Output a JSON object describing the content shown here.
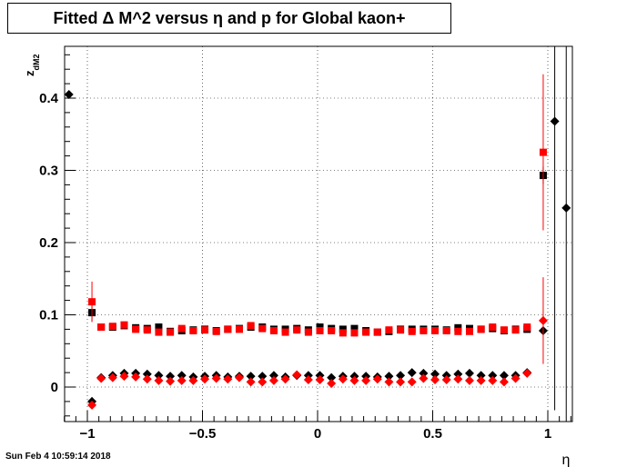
{
  "chart_data": {
    "type": "scatter",
    "title": "Fitted Δ M^2 versus η and p for Global kaon+",
    "xlabel": "η",
    "ylabel": "z",
    "ylabel_sub": "dM2",
    "xlim": [
      -1.1,
      1.12
    ],
    "ylim": [
      -0.048,
      0.478
    ],
    "grid": true,
    "x_ticks": [
      -1,
      -0.5,
      0,
      0.5,
      1
    ],
    "x_tick_labels": [
      "−1",
      "−0.5",
      "0",
      "0.5",
      "1"
    ],
    "y_ticks": [
      0,
      0.1,
      0.2,
      0.3,
      0.4
    ],
    "y_tick_labels": [
      "0",
      "0.1",
      "0.2",
      "0.3",
      "0.4"
    ],
    "series": [
      {
        "marker": "square",
        "color": "#000000",
        "points": [
          {
            "x": -0.98,
            "y": 0.103,
            "err": 0.012
          },
          {
            "x": -0.94,
            "y": 0.083,
            "err": 0.003
          },
          {
            "x": -0.89,
            "y": 0.083,
            "err": 0.003
          },
          {
            "x": -0.84,
            "y": 0.085,
            "err": 0.003
          },
          {
            "x": -0.79,
            "y": 0.082,
            "err": 0.003
          },
          {
            "x": -0.74,
            "y": 0.081,
            "err": 0.003
          },
          {
            "x": -0.69,
            "y": 0.083,
            "err": 0.003
          },
          {
            "x": -0.64,
            "y": 0.077,
            "err": 0.003
          },
          {
            "x": -0.59,
            "y": 0.078,
            "err": 0.003
          },
          {
            "x": -0.54,
            "y": 0.079,
            "err": 0.003
          },
          {
            "x": -0.49,
            "y": 0.08,
            "err": 0.003
          },
          {
            "x": -0.44,
            "y": 0.078,
            "err": 0.003
          },
          {
            "x": -0.39,
            "y": 0.08,
            "err": 0.003
          },
          {
            "x": -0.34,
            "y": 0.081,
            "err": 0.003
          },
          {
            "x": -0.29,
            "y": 0.083,
            "err": 0.003
          },
          {
            "x": -0.24,
            "y": 0.083,
            "err": 0.003
          },
          {
            "x": -0.19,
            "y": 0.08,
            "err": 0.003
          },
          {
            "x": -0.14,
            "y": 0.08,
            "err": 0.003
          },
          {
            "x": -0.09,
            "y": 0.081,
            "err": 0.003
          },
          {
            "x": -0.04,
            "y": 0.079,
            "err": 0.003
          },
          {
            "x": 0.01,
            "y": 0.083,
            "err": 0.003
          },
          {
            "x": 0.06,
            "y": 0.081,
            "err": 0.003
          },
          {
            "x": 0.11,
            "y": 0.08,
            "err": 0.003
          },
          {
            "x": 0.16,
            "y": 0.081,
            "err": 0.003
          },
          {
            "x": 0.21,
            "y": 0.078,
            "err": 0.003
          },
          {
            "x": 0.26,
            "y": 0.076,
            "err": 0.003
          },
          {
            "x": 0.31,
            "y": 0.077,
            "err": 0.003
          },
          {
            "x": 0.36,
            "y": 0.08,
            "err": 0.003
          },
          {
            "x": 0.41,
            "y": 0.08,
            "err": 0.003
          },
          {
            "x": 0.46,
            "y": 0.08,
            "err": 0.003
          },
          {
            "x": 0.51,
            "y": 0.08,
            "err": 0.003
          },
          {
            "x": 0.56,
            "y": 0.079,
            "err": 0.003
          },
          {
            "x": 0.61,
            "y": 0.082,
            "err": 0.003
          },
          {
            "x": 0.66,
            "y": 0.081,
            "err": 0.003
          },
          {
            "x": 0.71,
            "y": 0.08,
            "err": 0.003
          },
          {
            "x": 0.76,
            "y": 0.081,
            "err": 0.003
          },
          {
            "x": 0.81,
            "y": 0.078,
            "err": 0.003
          },
          {
            "x": 0.86,
            "y": 0.08,
            "err": 0.003
          },
          {
            "x": 0.91,
            "y": 0.08,
            "err": 0.003
          },
          {
            "x": 0.98,
            "y": 0.293,
            "err": 0.012
          }
        ]
      },
      {
        "marker": "square",
        "color": "#ff0000",
        "points": [
          {
            "x": -0.98,
            "y": 0.118,
            "err": 0.028
          },
          {
            "x": -0.94,
            "y": 0.083,
            "err": 0.004
          },
          {
            "x": -0.89,
            "y": 0.084,
            "err": 0.004
          },
          {
            "x": -0.84,
            "y": 0.086,
            "err": 0.004
          },
          {
            "x": -0.79,
            "y": 0.08,
            "err": 0.004
          },
          {
            "x": -0.74,
            "y": 0.079,
            "err": 0.004
          },
          {
            "x": -0.69,
            "y": 0.076,
            "err": 0.004
          },
          {
            "x": -0.64,
            "y": 0.076,
            "err": 0.004
          },
          {
            "x": -0.59,
            "y": 0.081,
            "err": 0.004
          },
          {
            "x": -0.54,
            "y": 0.078,
            "err": 0.004
          },
          {
            "x": -0.49,
            "y": 0.079,
            "err": 0.004
          },
          {
            "x": -0.44,
            "y": 0.077,
            "err": 0.004
          },
          {
            "x": -0.39,
            "y": 0.08,
            "err": 0.004
          },
          {
            "x": -0.34,
            "y": 0.08,
            "err": 0.004
          },
          {
            "x": -0.29,
            "y": 0.085,
            "err": 0.004
          },
          {
            "x": -0.24,
            "y": 0.081,
            "err": 0.004
          },
          {
            "x": -0.19,
            "y": 0.078,
            "err": 0.004
          },
          {
            "x": -0.14,
            "y": 0.076,
            "err": 0.004
          },
          {
            "x": -0.09,
            "y": 0.079,
            "err": 0.004
          },
          {
            "x": -0.04,
            "y": 0.076,
            "err": 0.004
          },
          {
            "x": 0.01,
            "y": 0.078,
            "err": 0.004
          },
          {
            "x": 0.06,
            "y": 0.078,
            "err": 0.004
          },
          {
            "x": 0.11,
            "y": 0.075,
            "err": 0.004
          },
          {
            "x": 0.16,
            "y": 0.075,
            "err": 0.004
          },
          {
            "x": 0.21,
            "y": 0.076,
            "err": 0.004
          },
          {
            "x": 0.26,
            "y": 0.076,
            "err": 0.004
          },
          {
            "x": 0.31,
            "y": 0.079,
            "err": 0.004
          },
          {
            "x": 0.36,
            "y": 0.079,
            "err": 0.004
          },
          {
            "x": 0.41,
            "y": 0.077,
            "err": 0.004
          },
          {
            "x": 0.46,
            "y": 0.078,
            "err": 0.004
          },
          {
            "x": 0.51,
            "y": 0.078,
            "err": 0.004
          },
          {
            "x": 0.56,
            "y": 0.078,
            "err": 0.004
          },
          {
            "x": 0.61,
            "y": 0.077,
            "err": 0.004
          },
          {
            "x": 0.66,
            "y": 0.077,
            "err": 0.004
          },
          {
            "x": 0.71,
            "y": 0.08,
            "err": 0.004
          },
          {
            "x": 0.76,
            "y": 0.083,
            "err": 0.004
          },
          {
            "x": 0.81,
            "y": 0.079,
            "err": 0.004
          },
          {
            "x": 0.86,
            "y": 0.079,
            "err": 0.004
          },
          {
            "x": 0.91,
            "y": 0.083,
            "err": 0.004
          },
          {
            "x": 0.98,
            "y": 0.325,
            "err": 0.108
          }
        ]
      },
      {
        "marker": "diamond",
        "color": "#000000",
        "points": [
          {
            "x": -1.08,
            "y": 0.405,
            "err": 0
          },
          {
            "x": -0.98,
            "y": -0.02,
            "err": 0.006
          },
          {
            "x": -0.94,
            "y": 0.013,
            "err": 0.002
          },
          {
            "x": -0.89,
            "y": 0.016,
            "err": 0.002
          },
          {
            "x": -0.84,
            "y": 0.019,
            "err": 0.002
          },
          {
            "x": -0.79,
            "y": 0.019,
            "err": 0.002
          },
          {
            "x": -0.74,
            "y": 0.018,
            "err": 0.002
          },
          {
            "x": -0.69,
            "y": 0.016,
            "err": 0.002
          },
          {
            "x": -0.64,
            "y": 0.015,
            "err": 0.002
          },
          {
            "x": -0.59,
            "y": 0.016,
            "err": 0.002
          },
          {
            "x": -0.54,
            "y": 0.014,
            "err": 0.002
          },
          {
            "x": -0.49,
            "y": 0.015,
            "err": 0.002
          },
          {
            "x": -0.44,
            "y": 0.016,
            "err": 0.002
          },
          {
            "x": -0.39,
            "y": 0.014,
            "err": 0.002
          },
          {
            "x": -0.34,
            "y": 0.015,
            "err": 0.002
          },
          {
            "x": -0.29,
            "y": 0.015,
            "err": 0.002
          },
          {
            "x": -0.24,
            "y": 0.015,
            "err": 0.002
          },
          {
            "x": -0.19,
            "y": 0.016,
            "err": 0.002
          },
          {
            "x": -0.14,
            "y": 0.014,
            "err": 0.002
          },
          {
            "x": -0.09,
            "y": 0.016,
            "err": 0.002
          },
          {
            "x": -0.04,
            "y": 0.016,
            "err": 0.002
          },
          {
            "x": 0.01,
            "y": 0.016,
            "err": 0.002
          },
          {
            "x": 0.06,
            "y": 0.013,
            "err": 0.002
          },
          {
            "x": 0.11,
            "y": 0.015,
            "err": 0.002
          },
          {
            "x": 0.16,
            "y": 0.015,
            "err": 0.002
          },
          {
            "x": 0.21,
            "y": 0.015,
            "err": 0.002
          },
          {
            "x": 0.26,
            "y": 0.014,
            "err": 0.002
          },
          {
            "x": 0.31,
            "y": 0.015,
            "err": 0.002
          },
          {
            "x": 0.36,
            "y": 0.016,
            "err": 0.002
          },
          {
            "x": 0.41,
            "y": 0.02,
            "err": 0.002
          },
          {
            "x": 0.46,
            "y": 0.019,
            "err": 0.002
          },
          {
            "x": 0.51,
            "y": 0.018,
            "err": 0.002
          },
          {
            "x": 0.56,
            "y": 0.016,
            "err": 0.002
          },
          {
            "x": 0.61,
            "y": 0.018,
            "err": 0.002
          },
          {
            "x": 0.66,
            "y": 0.019,
            "err": 0.002
          },
          {
            "x": 0.71,
            "y": 0.016,
            "err": 0.002
          },
          {
            "x": 0.76,
            "y": 0.016,
            "err": 0.002
          },
          {
            "x": 0.81,
            "y": 0.016,
            "err": 0.002
          },
          {
            "x": 0.86,
            "y": 0.016,
            "err": 0.002
          },
          {
            "x": 0.91,
            "y": 0.02,
            "err": 0.002
          },
          {
            "x": 0.98,
            "y": 0.078,
            "err": 0.006
          },
          {
            "x": 1.03,
            "y": 0.368,
            "err": 0.4
          },
          {
            "x": 1.08,
            "y": 0.248,
            "err": 0.4
          }
        ]
      },
      {
        "marker": "diamond",
        "color": "#ff0000",
        "points": [
          {
            "x": -0.98,
            "y": -0.025,
            "err": 0.005
          },
          {
            "x": -0.94,
            "y": 0.012,
            "err": 0.002
          },
          {
            "x": -0.89,
            "y": 0.013,
            "err": 0.002
          },
          {
            "x": -0.84,
            "y": 0.015,
            "err": 0.002
          },
          {
            "x": -0.79,
            "y": 0.014,
            "err": 0.002
          },
          {
            "x": -0.74,
            "y": 0.011,
            "err": 0.002
          },
          {
            "x": -0.69,
            "y": 0.009,
            "err": 0.002
          },
          {
            "x": -0.64,
            "y": 0.008,
            "err": 0.002
          },
          {
            "x": -0.59,
            "y": 0.009,
            "err": 0.002
          },
          {
            "x": -0.54,
            "y": 0.009,
            "err": 0.002
          },
          {
            "x": -0.49,
            "y": 0.011,
            "err": 0.002
          },
          {
            "x": -0.44,
            "y": 0.012,
            "err": 0.002
          },
          {
            "x": -0.39,
            "y": 0.011,
            "err": 0.002
          },
          {
            "x": -0.34,
            "y": 0.013,
            "err": 0.002
          },
          {
            "x": -0.29,
            "y": 0.007,
            "err": 0.002
          },
          {
            "x": -0.24,
            "y": 0.007,
            "err": 0.002
          },
          {
            "x": -0.19,
            "y": 0.009,
            "err": 0.002
          },
          {
            "x": -0.14,
            "y": 0.011,
            "err": 0.002
          },
          {
            "x": -0.09,
            "y": 0.017,
            "err": 0.002
          },
          {
            "x": -0.04,
            "y": 0.01,
            "err": 0.002
          },
          {
            "x": 0.01,
            "y": 0.01,
            "err": 0.002
          },
          {
            "x": 0.06,
            "y": 0.005,
            "err": 0.002
          },
          {
            "x": 0.11,
            "y": 0.011,
            "err": 0.002
          },
          {
            "x": 0.16,
            "y": 0.009,
            "err": 0.002
          },
          {
            "x": 0.21,
            "y": 0.009,
            "err": 0.002
          },
          {
            "x": 0.26,
            "y": 0.011,
            "err": 0.002
          },
          {
            "x": 0.31,
            "y": 0.007,
            "err": 0.002
          },
          {
            "x": 0.36,
            "y": 0.007,
            "err": 0.002
          },
          {
            "x": 0.41,
            "y": 0.007,
            "err": 0.002
          },
          {
            "x": 0.46,
            "y": 0.012,
            "err": 0.002
          },
          {
            "x": 0.51,
            "y": 0.01,
            "err": 0.002
          },
          {
            "x": 0.56,
            "y": 0.01,
            "err": 0.002
          },
          {
            "x": 0.61,
            "y": 0.011,
            "err": 0.002
          },
          {
            "x": 0.66,
            "y": 0.009,
            "err": 0.002
          },
          {
            "x": 0.71,
            "y": 0.009,
            "err": 0.002
          },
          {
            "x": 0.76,
            "y": 0.009,
            "err": 0.002
          },
          {
            "x": 0.81,
            "y": 0.007,
            "err": 0.002
          },
          {
            "x": 0.86,
            "y": 0.012,
            "err": 0.002
          },
          {
            "x": 0.91,
            "y": 0.019,
            "err": 0.002
          },
          {
            "x": 0.98,
            "y": 0.092,
            "err": 0.06
          }
        ]
      }
    ]
  },
  "footer": {
    "timestamp": "Sun Feb  4 10:59:14 2018"
  }
}
